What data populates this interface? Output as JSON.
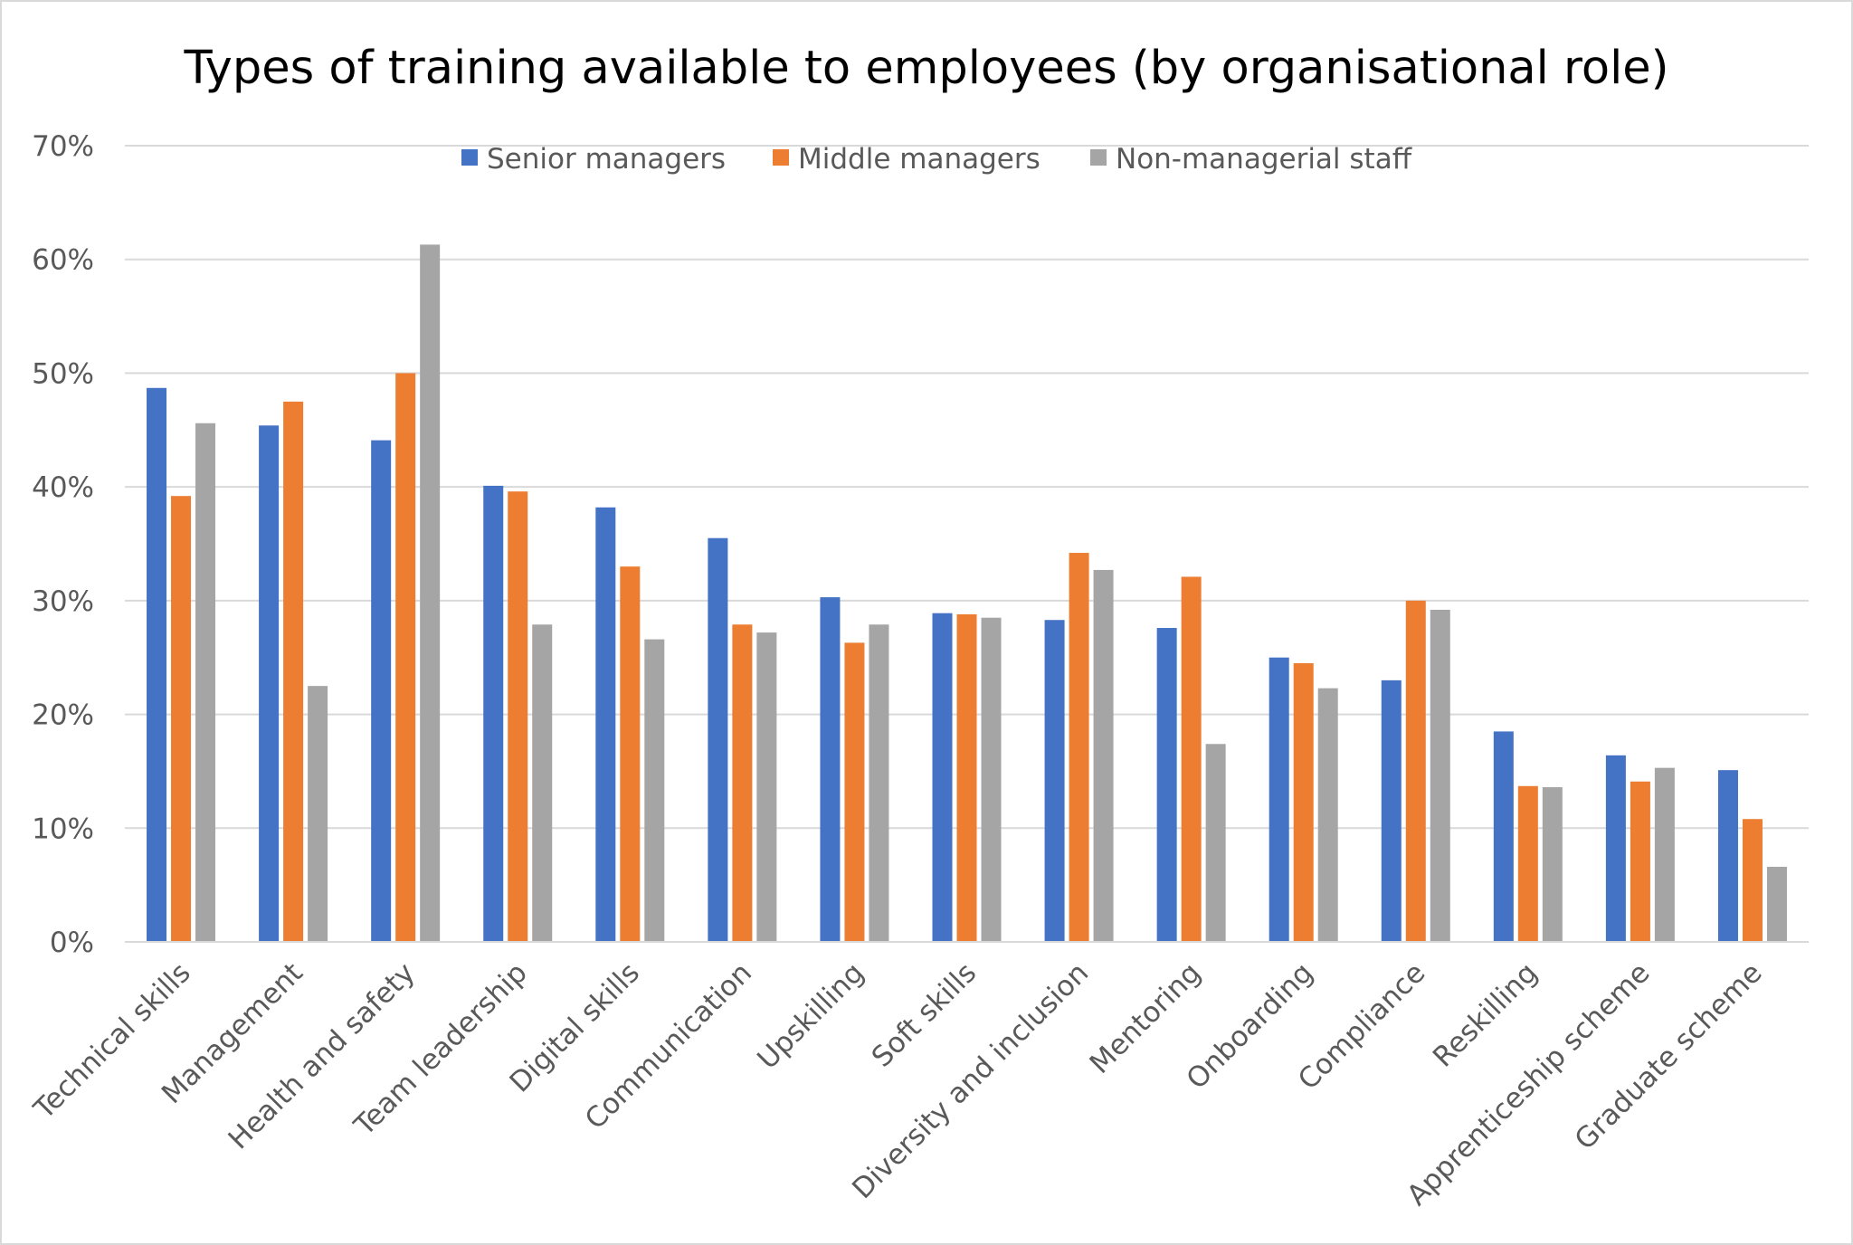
{
  "chart_data": {
    "type": "bar",
    "title": "Types of training available to employees (by organisational role)",
    "xlabel": "",
    "ylabel": "",
    "ylim": [
      0,
      70
    ],
    "y_ticks": [
      "0%",
      "10%",
      "20%",
      "30%",
      "40%",
      "50%",
      "60%",
      "70%"
    ],
    "grid": true,
    "legend_position": "top-center",
    "categories": [
      "Technical skills",
      "Management",
      "Health and safety",
      "Team leadership",
      "Digital skills",
      "Communication",
      "Upskilling",
      "Soft skills",
      "Diversity and inclusion",
      "Mentoring",
      "Onboarding",
      "Compliance",
      "Reskilling",
      "Apprenticeship scheme",
      "Graduate scheme"
    ],
    "series": [
      {
        "name": "Senior managers",
        "color": "#4472c4",
        "values": [
          48.7,
          45.4,
          44.1,
          40.1,
          38.2,
          35.5,
          30.3,
          28.9,
          28.3,
          27.6,
          25.0,
          23.0,
          18.5,
          16.4,
          15.1
        ]
      },
      {
        "name": "Middle managers",
        "color": "#ed7d31",
        "values": [
          39.2,
          47.5,
          50.0,
          39.6,
          33.0,
          27.9,
          26.3,
          28.8,
          34.2,
          32.1,
          24.5,
          30.0,
          13.7,
          14.1,
          10.8
        ]
      },
      {
        "name": "Non-managerial staff",
        "color": "#a5a5a5",
        "values": [
          45.6,
          22.5,
          61.3,
          27.9,
          26.6,
          27.2,
          27.9,
          28.5,
          32.7,
          17.4,
          22.3,
          29.2,
          13.6,
          15.3,
          6.6
        ]
      }
    ]
  }
}
